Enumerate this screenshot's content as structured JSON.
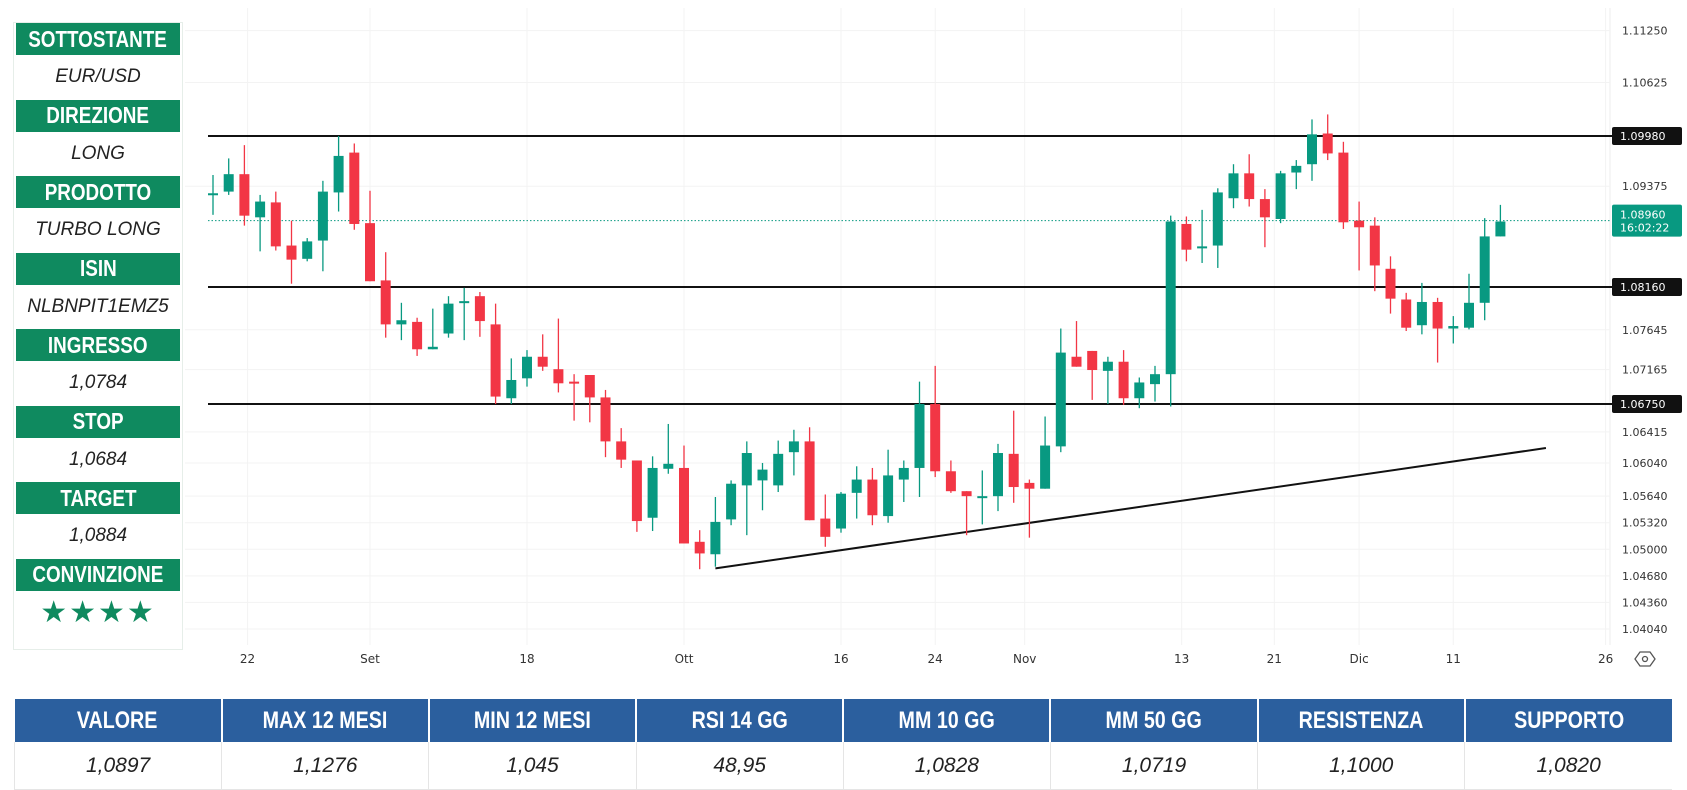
{
  "left_panel": [
    {
      "label": "SOTTOSTANTE",
      "value": "EUR/USD"
    },
    {
      "label": "DIREZIONE",
      "value": "LONG"
    },
    {
      "label": "PRODOTTO",
      "value": "TURBO LONG"
    },
    {
      "label": "ISIN",
      "value": "NLBNPIT1EMZ5"
    },
    {
      "label": "INGRESSO",
      "value": "1,0784"
    },
    {
      "label": "STOP",
      "value": "1,0684"
    },
    {
      "label": "TARGET",
      "value": "1,0884"
    },
    {
      "label": "CONVINZIONE",
      "value": "★★★★"
    }
  ],
  "conviction_stars": 4,
  "table": {
    "headers": [
      "VALORE",
      "MAX 12 MESI",
      "MIN 12 MESI",
      "RSI 14 GG",
      "MM 10 GG",
      "MM 50 GG",
      "RESISTENZA",
      "SUPPORTO"
    ],
    "values": [
      "1,0897",
      "1,1276",
      "1,045",
      "48,95",
      "1,0828",
      "1,0719",
      "1,1000",
      "1,0820"
    ]
  },
  "colors": {
    "up": "#089981",
    "down": "#f23645",
    "panel_green": "#0f8a5f",
    "table_blue": "#2b5f9e"
  },
  "chart_data": {
    "type": "candlestick",
    "title": "",
    "ylim": [
      1.0404,
      1.1125
    ],
    "y_ticks": [
      "1.11250",
      "1.10625",
      "1.09375",
      "1.07645",
      "1.07165",
      "1.06415",
      "1.06040",
      "1.05640",
      "1.05320",
      "1.05000",
      "1.04680",
      "1.04360",
      "1.04040"
    ],
    "x_ticks": [
      {
        "label": "22",
        "index": 2.2
      },
      {
        "label": "Set",
        "index": 10
      },
      {
        "label": "18",
        "index": 20
      },
      {
        "label": "Ott",
        "index": 30
      },
      {
        "label": "16",
        "index": 40
      },
      {
        "label": "24",
        "index": 46
      },
      {
        "label": "Nov",
        "index": 51.7
      },
      {
        "label": "13",
        "index": 61.7
      },
      {
        "label": "21",
        "index": 67.6
      },
      {
        "label": "Dic",
        "index": 73
      },
      {
        "label": "11",
        "index": 79
      },
      {
        "label": "26",
        "index": 88.7
      }
    ],
    "horizontal_levels": [
      {
        "price": 1.0998,
        "label": "1.09980"
      },
      {
        "price": 1.0816,
        "label": "1.08160"
      },
      {
        "price": 1.0675,
        "label": "1.06750"
      }
    ],
    "current_price": {
      "price": 1.0896,
      "label": "1.08960",
      "time": "16:02:22"
    },
    "trendline": [
      {
        "index": 32,
        "price": 1.0477
      },
      {
        "index": 84.9,
        "price": 1.0622
      }
    ],
    "ohlc": [
      [
        1.0929,
        1.0951,
        1.0903,
        1.0929
      ],
      [
        1.0931,
        1.0971,
        1.0927,
        1.0952
      ],
      [
        1.0952,
        1.0987,
        1.089,
        1.0902
      ],
      [
        1.09,
        1.0927,
        1.0859,
        1.0919
      ],
      [
        1.0918,
        1.0931,
        1.086,
        1.0865
      ],
      [
        1.0866,
        1.0896,
        1.082,
        1.0849
      ],
      [
        1.085,
        1.0875,
        1.0847,
        1.0871
      ],
      [
        1.0872,
        1.0944,
        1.0835,
        1.0931
      ],
      [
        1.093,
        1.0998,
        1.0907,
        1.0974
      ],
      [
        1.0978,
        1.0989,
        1.0885,
        1.0892
      ],
      [
        1.0893,
        1.0932,
        1.0823,
        1.0823
      ],
      [
        1.0824,
        1.0858,
        1.0755,
        1.0771
      ],
      [
        1.0771,
        1.0797,
        1.0752,
        1.0776
      ],
      [
        1.0774,
        1.0779,
        1.0733,
        1.0741
      ],
      [
        1.0741,
        1.079,
        1.0741,
        1.0744
      ],
      [
        1.076,
        1.0805,
        1.0755,
        1.0796
      ],
      [
        1.0797,
        1.0815,
        1.0752,
        1.0799
      ],
      [
        1.0805,
        1.081,
        1.0756,
        1.0775
      ],
      [
        1.0771,
        1.0796,
        1.0675,
        1.0684
      ],
      [
        1.0682,
        1.073,
        1.0675,
        1.0704
      ],
      [
        1.0706,
        1.074,
        1.0696,
        1.0732
      ],
      [
        1.0732,
        1.0759,
        1.0715,
        1.072
      ],
      [
        1.0717,
        1.0778,
        1.0689,
        1.07
      ],
      [
        1.0702,
        1.0711,
        1.0655,
        1.07
      ],
      [
        1.071,
        1.071,
        1.0653,
        1.0683
      ],
      [
        1.0683,
        1.0692,
        1.0611,
        1.063
      ],
      [
        1.063,
        1.0646,
        1.0598,
        1.0608
      ],
      [
        1.0607,
        1.0607,
        1.0521,
        1.0534
      ],
      [
        1.0538,
        1.0612,
        1.0522,
        1.0598
      ],
      [
        1.0597,
        1.0651,
        1.0591,
        1.0603
      ],
      [
        1.0598,
        1.0625,
        1.0507,
        1.0507
      ],
      [
        1.0509,
        1.0523,
        1.0476,
        1.0495
      ],
      [
        1.0494,
        1.0563,
        1.0479,
        1.0533
      ],
      [
        1.0536,
        1.0583,
        1.0529,
        1.0579
      ],
      [
        1.0577,
        1.063,
        1.0517,
        1.0616
      ],
      [
        1.0583,
        1.0604,
        1.0547,
        1.0596
      ],
      [
        1.0577,
        1.0631,
        1.0569,
        1.0615
      ],
      [
        1.0617,
        1.0644,
        1.0589,
        1.063
      ],
      [
        1.063,
        1.0647,
        1.0535,
        1.0535
      ],
      [
        1.0537,
        1.0566,
        1.0503,
        1.0515
      ],
      [
        1.0525,
        1.0569,
        1.052,
        1.0567
      ],
      [
        1.0568,
        1.06,
        1.0537,
        1.0584
      ],
      [
        1.0584,
        1.0598,
        1.0529,
        1.0541
      ],
      [
        1.054,
        1.062,
        1.0532,
        1.0589
      ],
      [
        1.0584,
        1.0607,
        1.0557,
        1.0598
      ],
      [
        1.0598,
        1.0702,
        1.0563,
        1.0675
      ],
      [
        1.0675,
        1.0721,
        1.0587,
        1.0594
      ],
      [
        1.0594,
        1.0607,
        1.0568,
        1.057
      ],
      [
        1.057,
        1.057,
        1.0517,
        1.0564
      ],
      [
        1.0563,
        1.0595,
        1.053,
        1.0564
      ],
      [
        1.0564,
        1.0627,
        1.0546,
        1.0616
      ],
      [
        1.0615,
        1.0667,
        1.0556,
        1.0575
      ],
      [
        1.058,
        1.0584,
        1.0514,
        1.0573
      ],
      [
        1.0573,
        1.066,
        1.0573,
        1.0625
      ],
      [
        1.0624,
        1.0766,
        1.0617,
        1.0737
      ],
      [
        1.0732,
        1.0775,
        1.072,
        1.072
      ],
      [
        1.0739,
        1.0739,
        1.068,
        1.0716
      ],
      [
        1.0715,
        1.0732,
        1.0675,
        1.0726
      ],
      [
        1.0726,
        1.074,
        1.0674,
        1.0682
      ],
      [
        1.0682,
        1.0707,
        1.067,
        1.0701
      ],
      [
        1.0699,
        1.0721,
        1.0678,
        1.0711
      ],
      [
        1.0711,
        1.0902,
        1.0672,
        1.0895
      ],
      [
        1.0892,
        1.0901,
        1.0847,
        1.0861
      ],
      [
        1.0864,
        1.0909,
        1.0845,
        1.0865
      ],
      [
        1.0866,
        1.0935,
        1.0839,
        1.093
      ],
      [
        1.0923,
        1.0964,
        1.0911,
        1.0953
      ],
      [
        1.0953,
        1.0976,
        1.0913,
        1.0922
      ],
      [
        1.0922,
        1.0934,
        1.0864,
        1.09
      ],
      [
        1.0898,
        1.0956,
        1.0893,
        1.0953
      ],
      [
        1.0954,
        1.0969,
        1.0934,
        1.0962
      ],
      [
        1.0964,
        1.1018,
        1.0944,
        1.1
      ],
      [
        1.1001,
        1.1024,
        1.0969,
        1.0977
      ],
      [
        1.0978,
        1.0991,
        1.0886,
        1.0894
      ],
      [
        1.0896,
        1.0919,
        1.0836,
        1.0888
      ],
      [
        1.089,
        1.09,
        1.0811,
        1.0842
      ],
      [
        1.0838,
        1.0853,
        1.0784,
        1.0802
      ],
      [
        1.0801,
        1.0809,
        1.0763,
        1.0767
      ],
      [
        1.077,
        1.0821,
        1.0759,
        1.0798
      ],
      [
        1.0798,
        1.0803,
        1.0725,
        1.0766
      ],
      [
        1.0766,
        1.0781,
        1.0748,
        1.0769
      ],
      [
        1.0767,
        1.0832,
        1.0765,
        1.0797
      ],
      [
        1.0797,
        1.0899,
        1.0776,
        1.0877
      ],
      [
        1.0877,
        1.0915,
        1.0877,
        1.0895
      ]
    ]
  }
}
